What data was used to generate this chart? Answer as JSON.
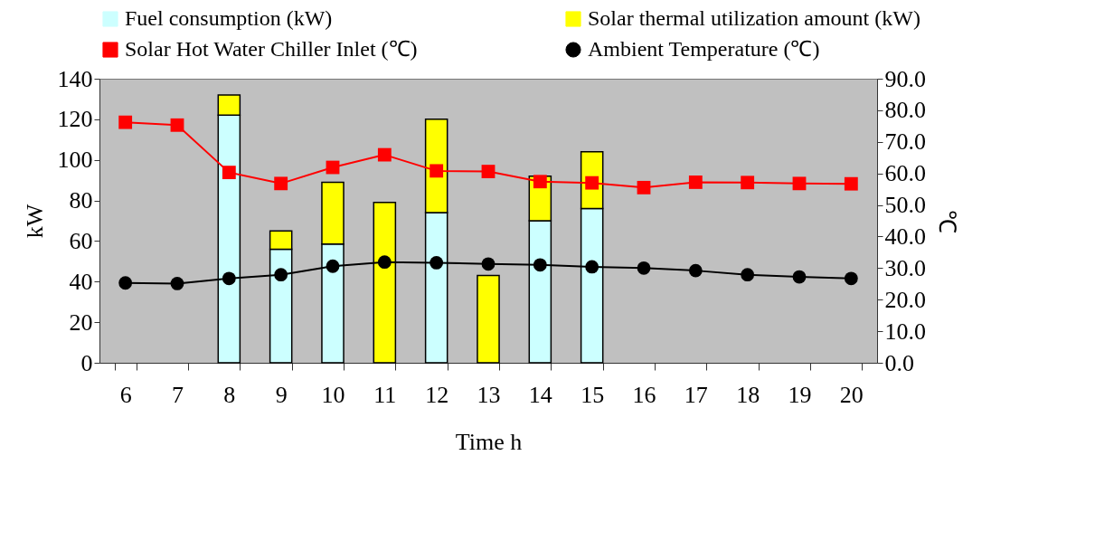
{
  "chart_data": {
    "type": "bar",
    "stacked": true,
    "categories": [
      "6",
      "7",
      "8",
      "9",
      "10",
      "11",
      "12",
      "13",
      "14",
      "15",
      "16",
      "17",
      "18",
      "19",
      "20"
    ],
    "xlabel": "Time h",
    "ylabel": "kW",
    "y2label": "℃",
    "ylim": [
      0,
      140
    ],
    "yticks": [
      0,
      20,
      40,
      60,
      80,
      100,
      120,
      140
    ],
    "y2lim": [
      0,
      90
    ],
    "y2ticks": [
      {
        "value": 0,
        "label": "0.0"
      },
      {
        "value": 10,
        "label": "10.0"
      },
      {
        "value": 20,
        "label": "20.0"
      },
      {
        "value": 30,
        "label": "30.0"
      },
      {
        "value": 40,
        "label": "40.0"
      },
      {
        "value": 50,
        "label": "50.0"
      },
      {
        "value": 60,
        "label": "60.0"
      },
      {
        "value": 70,
        "label": "70.0"
      },
      {
        "value": 80,
        "label": "80.0"
      },
      {
        "value": 90,
        "label": "90.0"
      }
    ],
    "legend": "top",
    "grid": false,
    "series": [
      {
        "name": "Fuel consumption (kW)",
        "color": "#ccffff",
        "values": [
          null,
          null,
          122,
          56,
          58.5,
          null,
          74,
          null,
          70,
          76,
          null,
          null,
          null,
          null,
          null
        ]
      },
      {
        "name": "Solar thermal utilization amount (kW)",
        "color": "#ffff00",
        "values": [
          null,
          null,
          10,
          9,
          30.5,
          79,
          46,
          43,
          22,
          28,
          null,
          null,
          null,
          null,
          null
        ]
      },
      {
        "name": "Solar Hot Water Chiller Inlet (℃)",
        "type": "line",
        "axis": "y2",
        "marker": "square",
        "color": "#ff0000",
        "values": [
          76.2,
          75.3,
          60.3,
          56.8,
          61.9,
          65.9,
          60.8,
          60.6,
          57.4,
          57.0,
          55.5,
          57.2,
          57.1,
          56.8,
          56.7
        ]
      },
      {
        "name": "Ambient Temperature (℃)",
        "type": "line",
        "axis": "y2",
        "marker": "circle",
        "color": "#000000",
        "values": [
          25.3,
          25.1,
          26.7,
          27.9,
          30.6,
          31.9,
          31.7,
          31.3,
          31.0,
          30.4,
          30.0,
          29.2,
          27.9,
          27.2,
          26.7
        ]
      }
    ]
  }
}
